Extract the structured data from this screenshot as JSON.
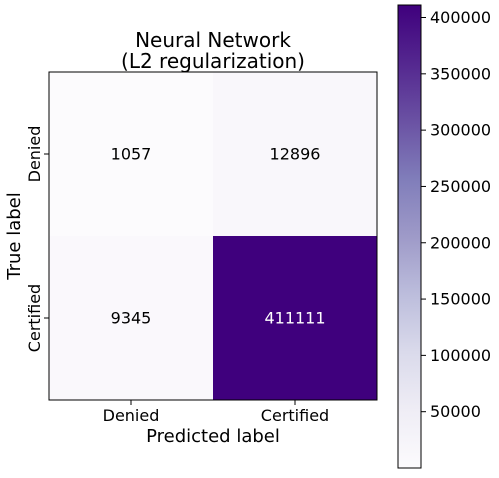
{
  "chart_data": {
    "type": "heatmap",
    "title_lines": [
      "Neural Network",
      "(L2 regularization)"
    ],
    "xlabel": "Predicted label",
    "ylabel": "True label",
    "x_categories": [
      "Denied",
      "Certified"
    ],
    "y_categories": [
      "Denied",
      "Certified"
    ],
    "matrix": [
      [
        1057,
        12896
      ],
      [
        9345,
        411111
      ]
    ],
    "colormap": "Purples",
    "colorbar": {
      "min": 0,
      "max": 411111,
      "ticks": [
        50000,
        100000,
        150000,
        200000,
        250000,
        300000,
        350000,
        400000
      ],
      "tick_labels": [
        "50000",
        "100000",
        "150000",
        "200000",
        "250000",
        "300000",
        "350000",
        "400000"
      ]
    },
    "colors": {
      "low": "#fcfbfd",
      "high": "#3f007d",
      "text_dark": "#000000",
      "text_light": "#ffffff"
    }
  }
}
